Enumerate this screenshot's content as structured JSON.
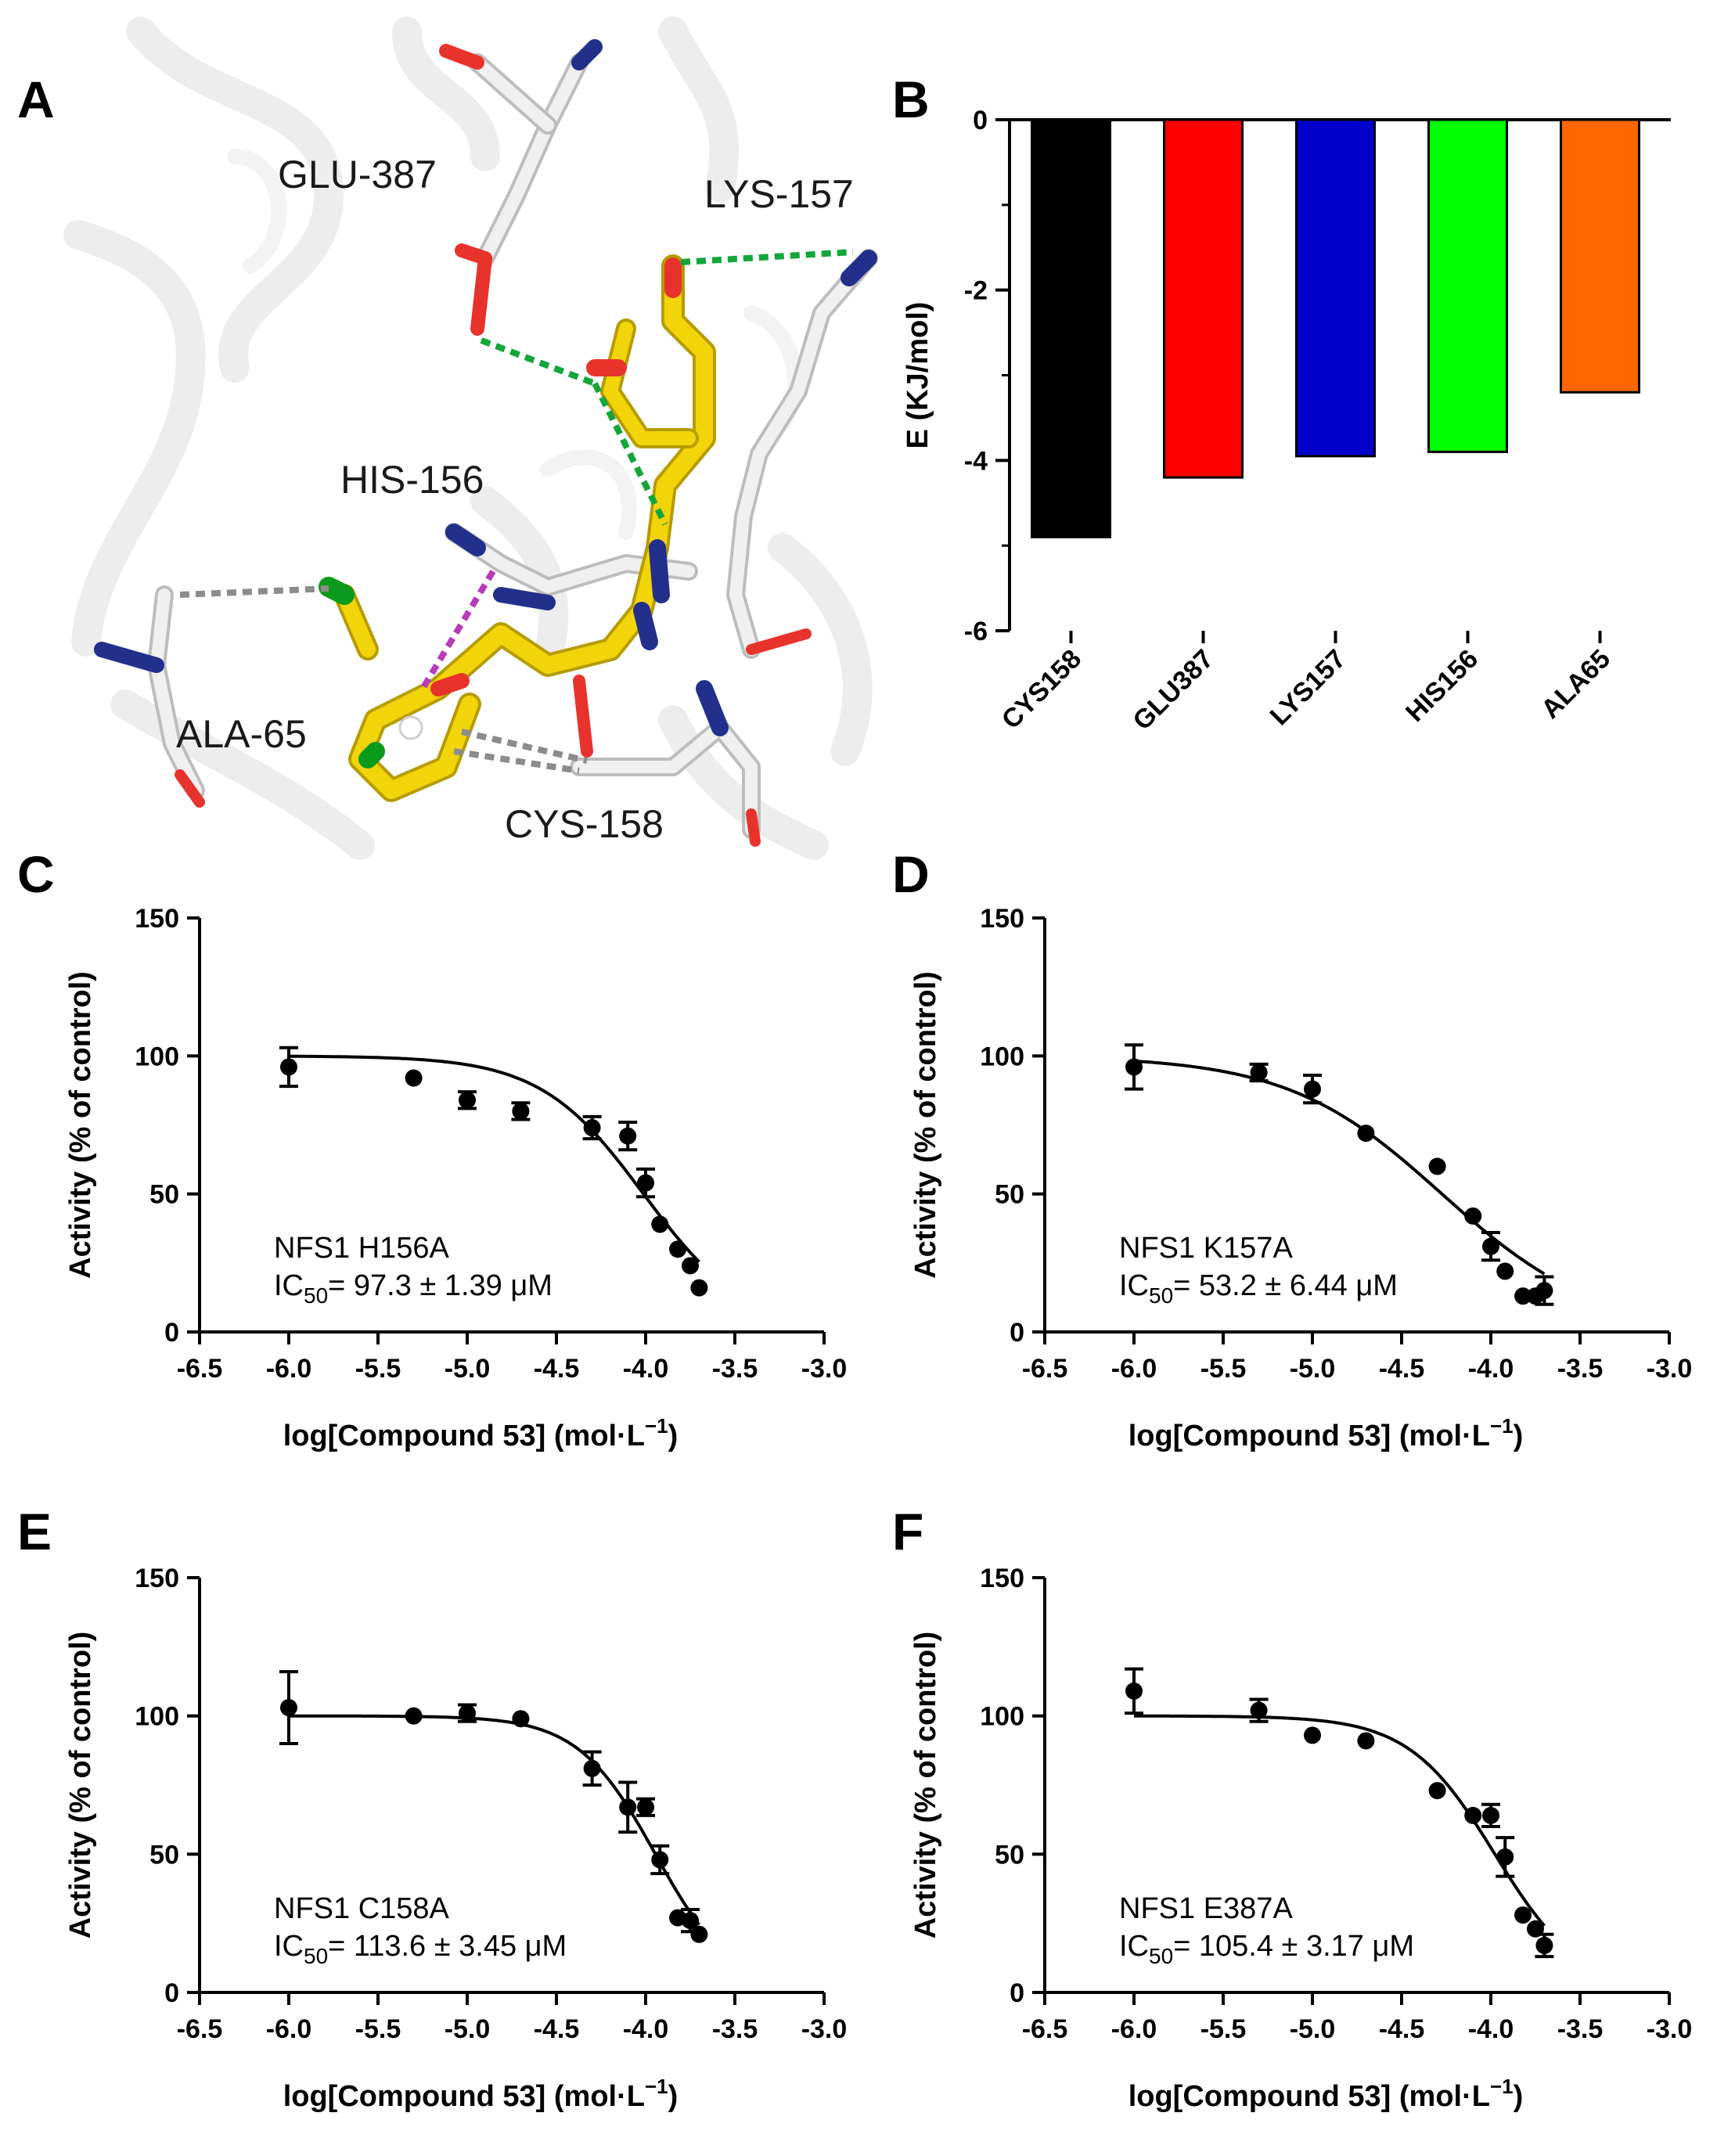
{
  "panels": {
    "A": "A",
    "B": "B",
    "C": "C",
    "D": "D",
    "E": "E",
    "F": "F"
  },
  "structure": {
    "residue_labels": [
      "GLU-387",
      "LYS-157",
      "HIS-156",
      "ALA-65",
      "CYS-158"
    ],
    "colors": {
      "ligand": "#f2d40a",
      "protein": "#e0e0e0",
      "nitrogen": "#22308c",
      "oxygen": "#e8332d",
      "chlorine": "#0b9a1b",
      "hbond": "#13a63a",
      "pi_interaction": "#b63cb8",
      "hydrophobic": "#8c8c8c"
    }
  },
  "chart_data": [
    {
      "type": "bar",
      "panel": "B",
      "categories": [
        "CYS158",
        "GLU387",
        "LYS157",
        "HIS156",
        "ALA65"
      ],
      "values": [
        -4.9,
        -4.2,
        -3.95,
        -3.9,
        -3.2
      ],
      "colors": [
        "#000000",
        "#ff0000",
        "#0000cc",
        "#00ff00",
        "#ff6600"
      ],
      "ylabel": "E (KJ/mol)",
      "ylim": [
        -6,
        0
      ],
      "yticks": [
        "0",
        "-2",
        "-4",
        "-6"
      ]
    },
    {
      "type": "scatter",
      "panel": "C",
      "xlabel": "log[Compound 53] (mol·L",
      "xlabel_sup": "−1",
      "xlabel_end": ")",
      "ylabel": "Activity (% of control)",
      "xlim": [
        -6.5,
        -3.0
      ],
      "ylim": [
        0,
        150
      ],
      "xticks": [
        "-6.5",
        "-6.0",
        "-5.5",
        "-5.0",
        "-4.5",
        "-4.0",
        "-3.5",
        "-3.0"
      ],
      "yticks": [
        "0",
        "50",
        "100",
        "150"
      ],
      "annotation_line1": "NFS1 H156A",
      "annotation_ic": "IC",
      "annotation_sub": "50",
      "annotation_value": "= 97.3 ± 1.39 μM",
      "x": [
        -6.0,
        -5.3,
        -5.0,
        -4.7,
        -4.3,
        -4.1,
        -4.0,
        -3.92,
        -3.82,
        -3.75,
        -3.7
      ],
      "y": [
        96,
        92,
        84,
        80,
        74,
        71,
        54,
        39,
        30,
        24,
        16
      ],
      "error": [
        7,
        0,
        3,
        3,
        4,
        5,
        5,
        0,
        0,
        0,
        0
      ],
      "fit": {
        "top": 100,
        "bottom": 0,
        "log_ic50": -4.012,
        "hill": 1.5
      }
    },
    {
      "type": "scatter",
      "panel": "D",
      "xlabel": "log[Compound 53] (mol·L",
      "xlabel_sup": "−1",
      "xlabel_end": ")",
      "ylabel": "Activity (% of control)",
      "xlim": [
        -6.5,
        -3.0
      ],
      "ylim": [
        0,
        150
      ],
      "xticks": [
        "-6.5",
        "-6.0",
        "-5.5",
        "-5.0",
        "-4.5",
        "-4.0",
        "-3.5",
        "-3.0"
      ],
      "yticks": [
        "0",
        "50",
        "100",
        "150"
      ],
      "annotation_line1": "NFS1 K157A",
      "annotation_ic": "IC",
      "annotation_sub": "50",
      "annotation_value": "= 53.2 ± 6.44 μM",
      "x": [
        -6.0,
        -5.3,
        -5.0,
        -4.7,
        -4.3,
        -4.1,
        -4.0,
        -3.92,
        -3.82,
        -3.75,
        -3.7
      ],
      "y": [
        96,
        94,
        88,
        72,
        60,
        42,
        31,
        22,
        13,
        13,
        15
      ],
      "error": [
        8,
        3,
        5,
        0,
        0,
        0,
        5,
        0,
        0,
        0,
        5
      ],
      "fit": {
        "top": 100,
        "bottom": 0,
        "log_ic50": -4.274,
        "hill": 1.0
      }
    },
    {
      "type": "scatter",
      "panel": "E",
      "xlabel": "log[Compound 53] (mol·L",
      "xlabel_sup": "−1",
      "xlabel_end": ")",
      "ylabel": "Activity (% of control)",
      "xlim": [
        -6.5,
        -3.0
      ],
      "ylim": [
        0,
        150
      ],
      "xticks": [
        "-6.5",
        "-6.0",
        "-5.5",
        "-5.0",
        "-4.5",
        "-4.0",
        "-3.5",
        "-3.0"
      ],
      "yticks": [
        "0",
        "50",
        "100",
        "150"
      ],
      "annotation_line1": "NFS1 C158A",
      "annotation_ic": "IC",
      "annotation_sub": "50",
      "annotation_value": "= 113.6 ± 3.45 μM",
      "x": [
        -6.0,
        -5.3,
        -5.0,
        -4.7,
        -4.3,
        -4.1,
        -4.0,
        -3.92,
        -3.82,
        -3.75,
        -3.7
      ],
      "y": [
        103,
        100,
        101,
        99,
        81,
        67,
        67,
        48,
        27,
        26,
        21
      ],
      "error": [
        13,
        0,
        3,
        0,
        6,
        9,
        3,
        5,
        0,
        4,
        0
      ],
      "fit": {
        "top": 100,
        "bottom": 0,
        "log_ic50": -3.945,
        "hill": 2.0
      }
    },
    {
      "type": "scatter",
      "panel": "F",
      "xlabel": "log[Compound 53] (mol·L",
      "xlabel_sup": "−1",
      "xlabel_end": ")",
      "ylabel": "Activity (% of control)",
      "xlim": [
        -6.5,
        -3.0
      ],
      "ylim": [
        0,
        150
      ],
      "xticks": [
        "-6.5",
        "-6.0",
        "-5.5",
        "-5.0",
        "-4.5",
        "-4.0",
        "-3.5",
        "-3.0"
      ],
      "yticks": [
        "0",
        "50",
        "100",
        "150"
      ],
      "annotation_line1": "NFS1 E387A",
      "annotation_ic": "IC",
      "annotation_sub": "50",
      "annotation_value": "= 105.4 ± 3.17 μM",
      "x": [
        -6.0,
        -5.3,
        -5.0,
        -4.7,
        -4.3,
        -4.1,
        -4.0,
        -3.92,
        -3.82,
        -3.75,
        -3.7
      ],
      "y": [
        109,
        102,
        93,
        91,
        73,
        64,
        64,
        49,
        28,
        23,
        17
      ],
      "error": [
        8,
        4,
        0,
        0,
        0,
        0,
        4,
        7,
        0,
        0,
        4
      ],
      "fit": {
        "top": 100,
        "bottom": 0,
        "log_ic50": -3.977,
        "hill": 1.8
      }
    }
  ]
}
